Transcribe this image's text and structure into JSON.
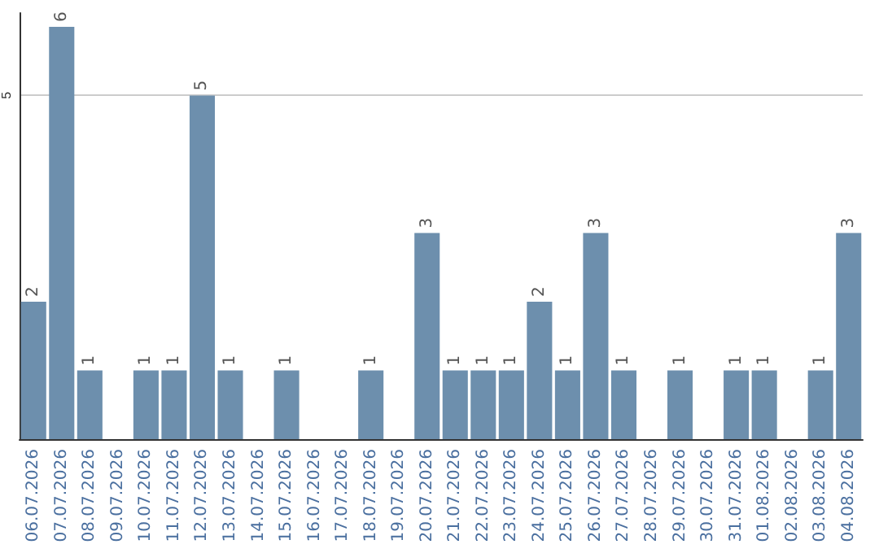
{
  "chart_data": {
    "type": "bar",
    "categories": [
      "06.07.2026",
      "07.07.2026",
      "08.07.2026",
      "09.07.2026",
      "10.07.2026",
      "11.07.2026",
      "12.07.2026",
      "13.07.2026",
      "14.07.2026",
      "15.07.2026",
      "16.07.2026",
      "17.07.2026",
      "18.07.2026",
      "19.07.2026",
      "20.07.2026",
      "21.07.2026",
      "22.07.2026",
      "23.07.2026",
      "24.07.2026",
      "25.07.2026",
      "26.07.2026",
      "27.07.2026",
      "28.07.2026",
      "29.07.2026",
      "30.07.2026",
      "31.07.2026",
      "01.08.2026",
      "02.08.2026",
      "03.08.2026",
      "04.08.2026"
    ],
    "values": [
      2,
      6,
      1,
      null,
      1,
      1,
      5,
      1,
      null,
      1,
      null,
      null,
      1,
      null,
      3,
      1,
      1,
      1,
      2,
      1,
      3,
      1,
      null,
      1,
      null,
      1,
      1,
      null,
      1,
      3
    ],
    "color": "#6d8fad",
    "ylim": [
      0,
      6.2
    ],
    "yticks": [
      5
    ],
    "grid": "y",
    "data_labels": true
  }
}
